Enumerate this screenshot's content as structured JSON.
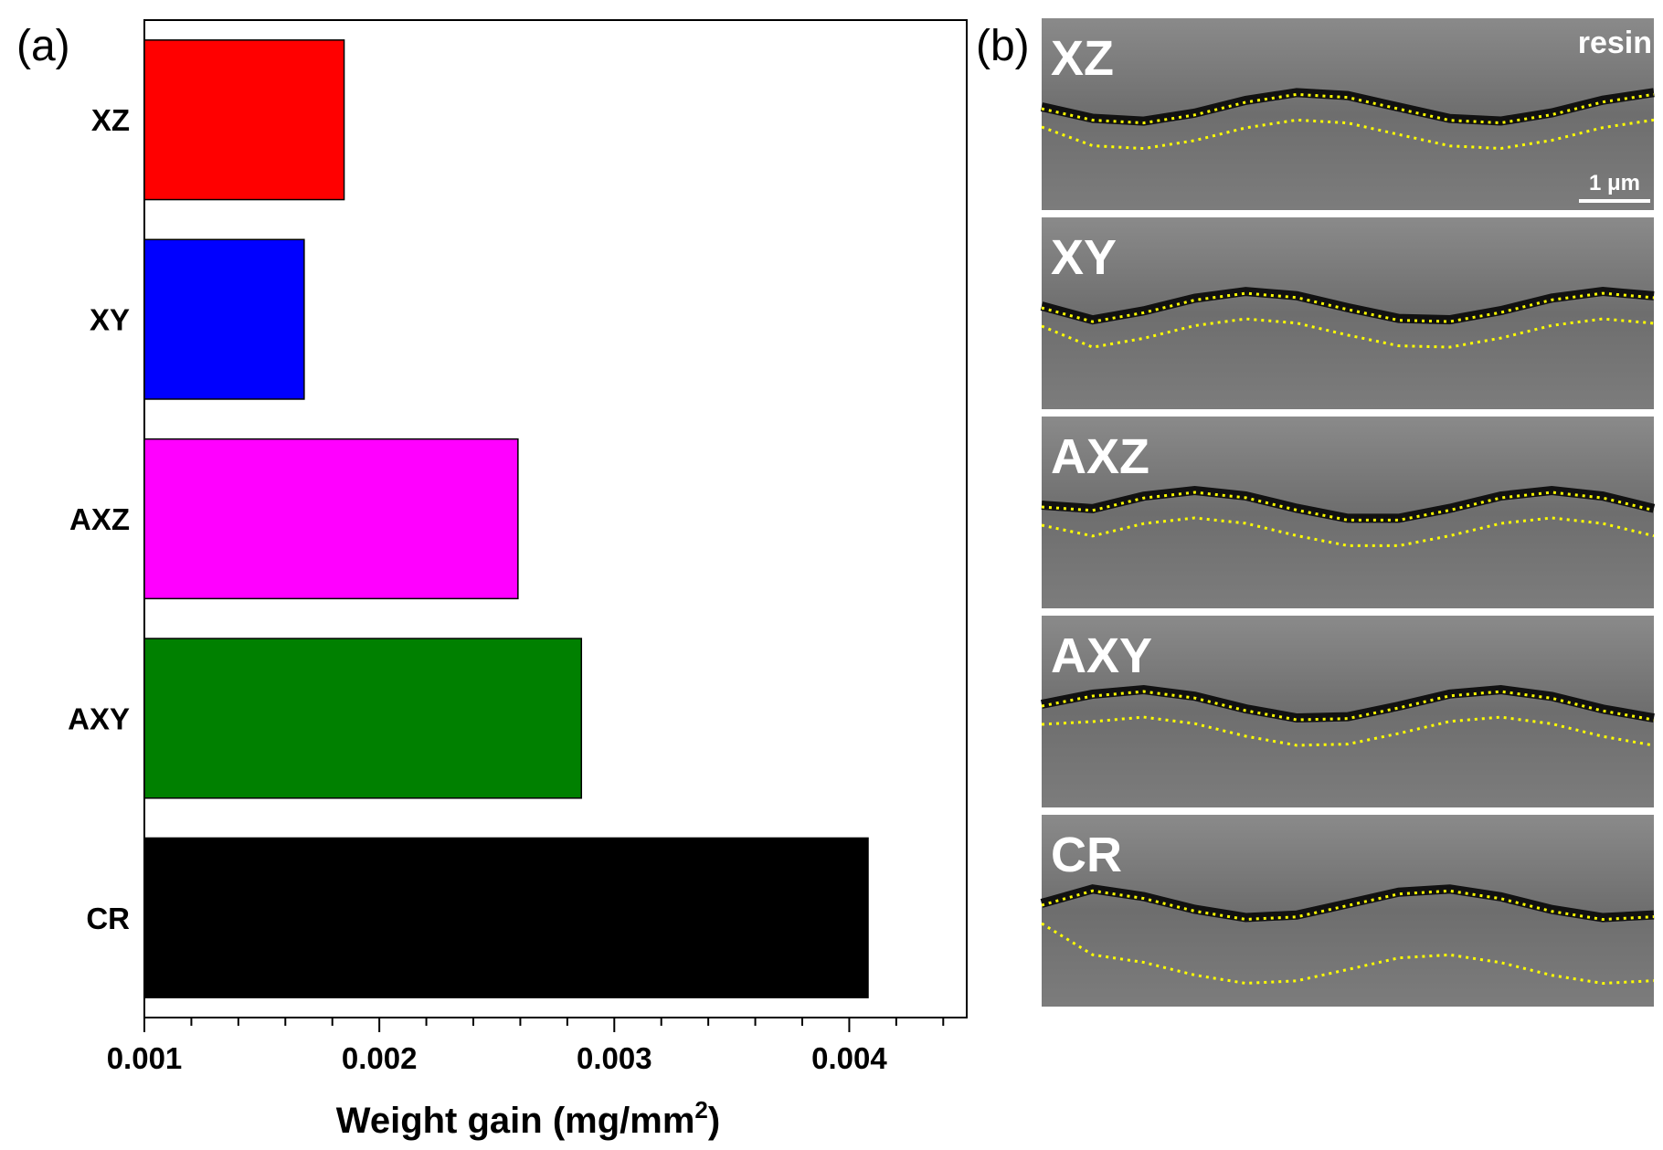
{
  "chart_data": {
    "type": "bar",
    "orientation": "horizontal",
    "panel_label": "(a)",
    "categories": [
      "XZ",
      "XY",
      "AXZ",
      "AXY",
      "CR"
    ],
    "values": [
      0.00185,
      0.00168,
      0.00259,
      0.00286,
      0.00408
    ],
    "colors": [
      "#ff0000",
      "#0000ff",
      "#ff00ff",
      "#008000",
      "#000000"
    ],
    "xlim": [
      0.001,
      0.0045
    ],
    "xticks": [
      0.001,
      0.002,
      0.003,
      0.004
    ],
    "xtick_labels": [
      "0.001",
      "0.002",
      "0.003",
      "0.004"
    ],
    "xlabel_main": "Weight gain (mg/mm",
    "xlabel_sup": "2",
    "xlabel_end": ")"
  },
  "micrographs": {
    "panel_label": "(b)",
    "labels": [
      "XZ",
      "XY",
      "AXZ",
      "AXY",
      "CR"
    ],
    "resin_label": "resin",
    "scale_bar": "1 μm"
  }
}
